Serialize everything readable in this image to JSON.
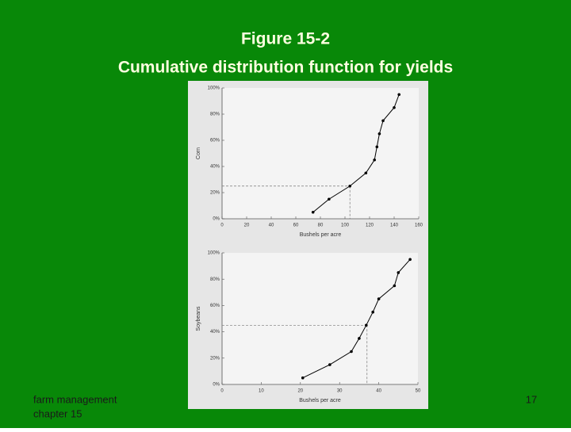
{
  "slide": {
    "title": "Figure 15-2",
    "subtitle": "Cumulative distribution function for yields",
    "footer": "farm management",
    "footer2": "chapter 15",
    "page": "17"
  },
  "chart_data": [
    {
      "type": "line",
      "xlabel": "Bushels per acre",
      "ylabel": "Corn",
      "x": [
        74,
        87,
        104,
        117,
        124,
        126,
        128,
        131,
        140,
        144
      ],
      "series": [
        {
          "color": "#000000",
          "values": [
            5,
            15,
            25,
            35,
            45,
            55,
            65,
            75,
            85,
            95
          ]
        }
      ],
      "xlim": [
        0,
        160
      ],
      "xticks": [
        0,
        20,
        40,
        60,
        80,
        100,
        120,
        140,
        160
      ],
      "ylim": [
        0,
        100
      ],
      "yticks": [
        {
          "value": 0,
          "label": "0%"
        },
        {
          "value": 20,
          "label": "20%"
        },
        {
          "value": 40,
          "label": "40%"
        },
        {
          "value": 60,
          "label": "60%"
        },
        {
          "value": 80,
          "label": "80%"
        },
        {
          "value": 100,
          "label": "100%"
        }
      ],
      "guide": {
        "x": 104,
        "y": 25
      }
    },
    {
      "type": "line",
      "xlabel": "Bushels per acre",
      "ylabel": "Soybeans",
      "x": [
        20.6,
        27.5,
        33,
        35,
        36.8,
        38.5,
        40,
        44,
        45,
        48
      ],
      "series": [
        {
          "color": "#000000",
          "values": [
            5,
            15,
            25,
            35,
            45,
            55,
            65,
            75,
            85,
            95
          ]
        }
      ],
      "xlim": [
        0,
        50
      ],
      "xticks": [
        0,
        10,
        20,
        30,
        40,
        50
      ],
      "ylim": [
        0,
        100
      ],
      "yticks": [
        {
          "value": 0,
          "label": "0%"
        },
        {
          "value": 20,
          "label": "20%"
        },
        {
          "value": 40,
          "label": "40%"
        },
        {
          "value": 60,
          "label": "60%"
        },
        {
          "value": 80,
          "label": "80%"
        },
        {
          "value": 100,
          "label": "100%"
        }
      ],
      "guide": {
        "x": 37,
        "y": 45
      }
    }
  ]
}
